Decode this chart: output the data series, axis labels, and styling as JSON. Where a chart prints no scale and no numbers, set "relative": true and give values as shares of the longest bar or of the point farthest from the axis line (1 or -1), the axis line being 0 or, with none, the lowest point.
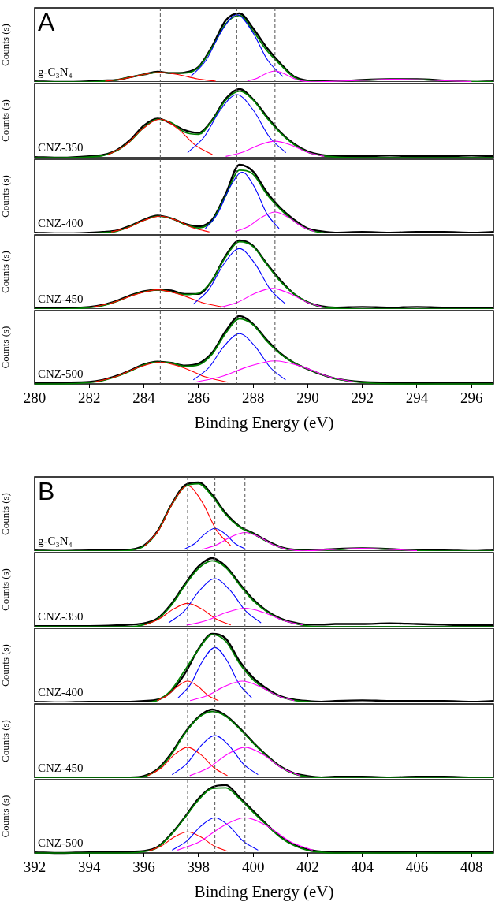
{
  "chart_data": [
    {
      "type": "line",
      "relative": true,
      "title": "A",
      "annotations": [
        "g-C₃N₄"
      ],
      "ylabel": "Counts (s)",
      "xlim": [
        280,
        296.8
      ],
      "xticks": [
        280,
        282,
        284,
        286,
        288,
        290,
        292,
        294,
        296
      ],
      "tick_labels": false,
      "grid": false,
      "legend": false,
      "x": [
        280,
        281,
        282,
        282.5,
        283,
        283.5,
        284,
        284.5,
        285,
        285.5,
        286,
        286.5,
        287,
        287.5,
        288,
        288.5,
        289,
        289.5,
        290,
        290.5,
        291,
        292,
        293,
        294,
        295,
        296,
        296.8
      ],
      "ref_lines": [
        {
          "axis": "x",
          "value": 284.6,
          "color": "#555555",
          "line_style": "dashed"
        },
        {
          "axis": "x",
          "value": 287.4,
          "color": "#555555",
          "line_style": "dashed"
        },
        {
          "axis": "x",
          "value": 288.8,
          "color": "#555555",
          "line_style": "dashed"
        }
      ],
      "series": [
        {
          "color": "#000000",
          "values": [
            0.01,
            0,
            0.01,
            0.02,
            0.03,
            0.07,
            0.11,
            0.15,
            0.13,
            0.14,
            0.22,
            0.52,
            0.9,
            1.0,
            0.78,
            0.5,
            0.27,
            0.08,
            0.02,
            0.01,
            0.01,
            0.03,
            0.04,
            0.04,
            0.02,
            0,
            0.01
          ]
        },
        {
          "color": "#008000",
          "values": [
            0,
            0,
            0,
            0.01,
            0.03,
            0.07,
            0.11,
            0.14,
            0.13,
            0.13,
            0.21,
            0.5,
            0.85,
            0.97,
            0.74,
            0.46,
            0.25,
            0.07,
            0.01,
            0.005,
            0.01,
            0.024,
            0.039,
            0.035,
            0.018,
            0.006,
            0.002
          ]
        },
        {
          "color": "#ff0000",
          "x": [
            282.58,
            283.25,
            283.93,
            284.6,
            285.28,
            285.95,
            286.63
          ],
          "values": [
            0.011,
            0.046,
            0.106,
            0.14,
            0.106,
            0.046,
            0.011
          ]
        },
        {
          "color": "#0000ff",
          "x": [
            285.71,
            286.28,
            286.84,
            287.4,
            287.96,
            288.53,
            289.09
          ],
          "values": [
            0.078,
            0.319,
            0.74,
            0.98,
            0.74,
            0.319,
            0.078
          ]
        },
        {
          "color": "#ff00ff",
          "x": [
            287.79,
            288.13,
            288.46,
            288.8,
            289.14,
            289.48,
            289.81,
            290.15,
            291,
            292,
            293,
            293.3,
            294,
            295,
            296
          ],
          "values": [
            0.013,
            0.052,
            0.121,
            0.16,
            0.121,
            0.052,
            0.013,
            0.002,
            0.01,
            0.024,
            0.039,
            0.04,
            0.035,
            0.018,
            0.006
          ]
        }
      ]
    },
    {
      "type": "line",
      "relative": true,
      "annotations": [
        "CNZ-350"
      ],
      "ylabel": "Counts (s)",
      "xlim": [
        280,
        296.8
      ],
      "xticks": [
        280,
        282,
        284,
        286,
        288,
        290,
        292,
        294,
        296
      ],
      "tick_labels": false,
      "grid": false,
      "legend": false,
      "x": [
        280,
        281,
        282,
        282.5,
        283,
        283.5,
        284,
        284.5,
        285,
        285.5,
        286,
        286.5,
        287,
        287.5,
        288,
        288.5,
        289,
        289.5,
        290,
        290.5,
        291,
        292,
        293,
        294,
        295,
        296,
        296.8
      ],
      "ref_lines": [
        {
          "axis": "x",
          "value": 284.6,
          "color": "#555555",
          "line_style": "dashed"
        },
        {
          "axis": "x",
          "value": 287.4,
          "color": "#555555",
          "line_style": "dashed"
        },
        {
          "axis": "x",
          "value": 288.8,
          "color": "#555555",
          "line_style": "dashed"
        }
      ],
      "series": [
        {
          "color": "#000000",
          "values": [
            0.01,
            0,
            0.02,
            0.04,
            0.11,
            0.26,
            0.47,
            0.57,
            0.5,
            0.4,
            0.36,
            0.55,
            0.86,
            1.0,
            0.85,
            0.6,
            0.37,
            0.2,
            0.09,
            0.04,
            0.02,
            0.02,
            0.03,
            0.02,
            0.02,
            0.03,
            0.02
          ]
        },
        {
          "color": "#008000",
          "values": [
            0,
            0,
            0.01,
            0.03,
            0.1,
            0.24,
            0.44,
            0.56,
            0.51,
            0.37,
            0.34,
            0.54,
            0.84,
            0.97,
            0.84,
            0.58,
            0.36,
            0.19,
            0.08,
            0.03,
            0.01,
            0,
            0,
            0,
            0,
            0,
            0
          ]
        },
        {
          "color": "#ff0000",
          "x": [
            282.69,
            283.33,
            283.96,
            284.6,
            285.24,
            285.88,
            286.51
          ],
          "values": [
            0.045,
            0.182,
            0.423,
            0.56,
            0.423,
            0.182,
            0.045
          ]
        },
        {
          "color": "#0000ff",
          "x": [
            285.6,
            286.2,
            286.8,
            287.4,
            288,
            288.6,
            289.2
          ],
          "values": [
            0.074,
            0.299,
            0.695,
            0.92,
            0.695,
            0.299,
            0.074
          ]
        },
        {
          "color": "#ff00ff",
          "x": [
            287,
            287.6,
            288.2,
            288.8,
            289.4,
            290,
            290.6
          ],
          "values": [
            0.019,
            0.078,
            0.181,
            0.24,
            0.181,
            0.078,
            0.019
          ]
        }
      ]
    },
    {
      "type": "line",
      "relative": true,
      "annotations": [
        "CNZ-400"
      ],
      "ylabel": "Counts (s)",
      "xlim": [
        280,
        296.8
      ],
      "xticks": [
        280,
        282,
        284,
        286,
        288,
        290,
        292,
        294,
        296
      ],
      "tick_labels": false,
      "grid": false,
      "legend": false,
      "x": [
        280,
        281,
        282,
        282.5,
        283,
        283.5,
        284,
        284.5,
        285,
        285.5,
        286,
        286.5,
        287,
        287.5,
        288,
        288.5,
        289,
        289.5,
        290,
        290.5,
        291,
        292,
        293,
        294,
        295,
        296,
        296.8
      ],
      "ref_lines": [
        {
          "axis": "x",
          "value": 284.6,
          "color": "#555555",
          "line_style": "dashed"
        },
        {
          "axis": "x",
          "value": 287.4,
          "color": "#555555",
          "line_style": "dashed"
        },
        {
          "axis": "x",
          "value": 288.8,
          "color": "#555555",
          "line_style": "dashed"
        }
      ],
      "series": [
        {
          "color": "#000000",
          "values": [
            0.01,
            0,
            0.01,
            0.02,
            0.04,
            0.11,
            0.2,
            0.26,
            0.22,
            0.14,
            0.1,
            0.2,
            0.58,
            1.0,
            0.9,
            0.6,
            0.37,
            0.2,
            0.07,
            0.03,
            0.01,
            0.02,
            0.01,
            0.02,
            0.02,
            0.01,
            0.02
          ]
        },
        {
          "color": "#008000",
          "values": [
            0,
            0,
            0,
            0.01,
            0.03,
            0.1,
            0.19,
            0.25,
            0.22,
            0.13,
            0.08,
            0.18,
            0.55,
            0.92,
            0.86,
            0.57,
            0.35,
            0.18,
            0.06,
            0.01,
            0,
            0,
            0,
            0,
            0,
            0,
            0
          ]
        },
        {
          "color": "#ff0000",
          "x": [
            282.8,
            283.4,
            284,
            284.6,
            285.2,
            285.8,
            286.4
          ],
          "values": [
            0.02,
            0.081,
            0.189,
            0.25,
            0.189,
            0.081,
            0.02
          ]
        },
        {
          "color": "#0000ff",
          "x": [
            286.25,
            286.7,
            287.15,
            287.6,
            288.05,
            288.5,
            288.95
          ],
          "values": [
            0.071,
            0.289,
            0.672,
            0.89,
            0.672,
            0.289,
            0.071
          ]
        },
        {
          "color": "#ff00ff",
          "x": [
            287.34,
            287.83,
            288.31,
            288.8,
            289.29,
            289.78,
            290.26
          ],
          "values": [
            0.025,
            0.101,
            0.234,
            0.31,
            0.234,
            0.101,
            0.025
          ]
        }
      ]
    },
    {
      "type": "line",
      "relative": true,
      "annotations": [
        "CNZ-450"
      ],
      "ylabel": "Counts (s)",
      "xlim": [
        280,
        296.8
      ],
      "xticks": [
        280,
        282,
        284,
        286,
        288,
        290,
        292,
        294,
        296
      ],
      "tick_labels": false,
      "grid": false,
      "legend": false,
      "x": [
        280,
        281,
        282,
        282.5,
        283,
        283.5,
        284,
        284.5,
        285,
        285.5,
        286,
        286.5,
        287,
        287.5,
        288,
        288.5,
        289,
        289.5,
        290,
        290.5,
        291,
        292,
        293,
        294,
        295,
        296,
        296.8
      ],
      "ref_lines": [
        {
          "axis": "x",
          "value": 284.6,
          "color": "#555555",
          "line_style": "dashed"
        },
        {
          "axis": "x",
          "value": 287.4,
          "color": "#555555",
          "line_style": "dashed"
        },
        {
          "axis": "x",
          "value": 288.8,
          "color": "#555555",
          "line_style": "dashed"
        }
      ],
      "series": [
        {
          "color": "#000000",
          "values": [
            0.01,
            0.01,
            0.03,
            0.06,
            0.12,
            0.2,
            0.26,
            0.28,
            0.27,
            0.22,
            0.22,
            0.42,
            0.78,
            1.0,
            0.92,
            0.66,
            0.42,
            0.22,
            0.1,
            0.04,
            0.02,
            0.03,
            0.02,
            0.03,
            0.02,
            0.02,
            0.02
          ]
        },
        {
          "color": "#008000",
          "values": [
            0,
            0,
            0.02,
            0.05,
            0.11,
            0.19,
            0.25,
            0.28,
            0.25,
            0.21,
            0.23,
            0.42,
            0.76,
            0.98,
            0.91,
            0.65,
            0.4,
            0.22,
            0.1,
            0.03,
            0.01,
            0,
            0,
            0,
            0,
            0,
            0
          ]
        },
        {
          "color": "#ff0000",
          "x": [
            282.03,
            282.85,
            283.68,
            284.5,
            285.33,
            286.15,
            286.98
          ],
          "values": [
            0.022,
            0.091,
            0.211,
            0.28,
            0.211,
            0.091,
            0.022
          ]
        },
        {
          "color": "#0000ff",
          "x": [
            285.81,
            286.38,
            286.94,
            287.5,
            288.06,
            288.63,
            289.19
          ],
          "values": [
            0.07,
            0.286,
            0.664,
            0.88,
            0.664,
            0.286,
            0.07
          ]
        },
        {
          "color": "#ff00ff",
          "x": [
            286.79,
            287.43,
            288.06,
            288.7,
            289.34,
            289.98,
            290.61
          ],
          "values": [
            0.024,
            0.098,
            0.227,
            0.3,
            0.227,
            0.098,
            0.024
          ]
        }
      ]
    },
    {
      "type": "line",
      "relative": true,
      "annotations": [
        "CNZ-500"
      ],
      "ylabel": "Counts (s)",
      "xlabel": "Binding Energy (eV)",
      "xlim": [
        280,
        296.8
      ],
      "xticks": [
        280,
        282,
        284,
        286,
        288,
        290,
        292,
        294,
        296
      ],
      "tick_labels": "x",
      "grid": false,
      "legend": false,
      "x": [
        280,
        281,
        282,
        282.5,
        283,
        283.5,
        284,
        284.5,
        285,
        285.5,
        286,
        286.5,
        287,
        287.5,
        288,
        288.5,
        289,
        289.5,
        290,
        290.5,
        291,
        292,
        293,
        294,
        295,
        296,
        296.8
      ],
      "ref_lines": [
        {
          "axis": "x",
          "value": 284.6,
          "color": "#555555",
          "line_style": "dashed"
        },
        {
          "axis": "x",
          "value": 287.4,
          "color": "#555555",
          "line_style": "dashed"
        },
        {
          "axis": "x",
          "value": 288.8,
          "color": "#555555",
          "line_style": "dashed"
        }
      ],
      "series": [
        {
          "color": "#000000",
          "values": [
            0.01,
            0.02,
            0.03,
            0.06,
            0.12,
            0.2,
            0.29,
            0.33,
            0.31,
            0.27,
            0.3,
            0.46,
            0.78,
            1.0,
            0.88,
            0.65,
            0.45,
            0.31,
            0.22,
            0.14,
            0.08,
            0.03,
            0.02,
            0.01,
            0.02,
            0.02,
            0.02
          ]
        },
        {
          "color": "#008000",
          "values": [
            0,
            0,
            0.02,
            0.05,
            0.11,
            0.19,
            0.28,
            0.32,
            0.31,
            0.26,
            0.28,
            0.44,
            0.75,
            0.96,
            0.87,
            0.63,
            0.44,
            0.31,
            0.22,
            0.14,
            0.08,
            0.02,
            0,
            0,
            0,
            0,
            0
          ]
        },
        {
          "color": "#ff0000",
          "x": [
            282.13,
            282.95,
            283.78,
            284.6,
            285.43,
            286.25,
            287.08
          ],
          "values": [
            0.026,
            0.104,
            0.242,
            0.32,
            0.242,
            0.104,
            0.026
          ]
        },
        {
          "color": "#0000ff",
          "x": [
            285.81,
            286.38,
            286.94,
            287.5,
            288.06,
            288.63,
            289.19
          ],
          "values": [
            0.059,
            0.241,
            0.559,
            0.74,
            0.559,
            0.241,
            0.059
          ]
        },
        {
          "color": "#ff00ff",
          "x": [
            285.88,
            286.85,
            287.83,
            288.8,
            289.78,
            290.75,
            291.73
          ],
          "values": [
            0.027,
            0.111,
            0.257,
            0.34,
            0.257,
            0.111,
            0.027
          ]
        }
      ]
    },
    {
      "type": "line",
      "relative": true,
      "title": "B",
      "annotations": [
        "g-C₃N₄"
      ],
      "ylabel": "Counts (s)",
      "xlim": [
        392,
        408.8
      ],
      "xticks": [
        392,
        394,
        396,
        398,
        400,
        402,
        404,
        406,
        408
      ],
      "tick_labels": false,
      "grid": false,
      "legend": false,
      "x": [
        392,
        393,
        394,
        395,
        395.5,
        396,
        396.5,
        397,
        397.5,
        398,
        398.5,
        399,
        399.5,
        400,
        400.5,
        401,
        401.5,
        402,
        402.5,
        403,
        404,
        405,
        406,
        407,
        408,
        408.8
      ],
      "ref_lines": [
        {
          "axis": "x",
          "value": 397.6,
          "color": "#555555",
          "line_style": "dashed"
        },
        {
          "axis": "x",
          "value": 398.6,
          "color": "#555555",
          "line_style": "dashed"
        },
        {
          "axis": "x",
          "value": 399.7,
          "color": "#555555",
          "line_style": "dashed"
        }
      ],
      "series": [
        {
          "color": "#000000",
          "values": [
            0.01,
            0,
            0.01,
            0.01,
            0.02,
            0.08,
            0.29,
            0.67,
            0.96,
            1.0,
            0.82,
            0.55,
            0.36,
            0.26,
            0.15,
            0.06,
            0.02,
            0.01,
            0.02,
            0.03,
            0.04,
            0.03,
            0.01,
            0.01,
            0,
            0.01
          ]
        },
        {
          "color": "#008000",
          "values": [
            0,
            0,
            0,
            0,
            0.01,
            0.07,
            0.28,
            0.66,
            0.94,
            0.98,
            0.8,
            0.53,
            0.35,
            0.25,
            0.14,
            0.05,
            0.01,
            0.005,
            0.01,
            0.02,
            0.04,
            0.024,
            0.005,
            0,
            0,
            0
          ]
        },
        {
          "color": "#ff0000",
          "x": [
            396.03,
            396.55,
            397.08,
            397.6,
            398.13,
            398.65,
            399.18
          ],
          "values": [
            0.076,
            0.309,
            0.717,
            0.95,
            0.717,
            0.309,
            0.076
          ]
        },
        {
          "color": "#0000ff",
          "x": [
            397.48,
            397.85,
            398.23,
            398.6,
            398.98,
            399.35,
            399.73
          ],
          "values": [
            0.026,
            0.107,
            0.249,
            0.33,
            0.249,
            0.107,
            0.026
          ]
        },
        {
          "color": "#ff00ff",
          "x": [
            398.13,
            398.65,
            399.18,
            399.7,
            400.23,
            400.75,
            401.28,
            401.8,
            402.5,
            403,
            403.5,
            404,
            404.5,
            405,
            406
          ],
          "values": [
            0.022,
            0.088,
            0.204,
            0.27,
            0.204,
            0.088,
            0.022,
            0.003,
            0.013,
            0.024,
            0.035,
            0.04,
            0.035,
            0.024,
            0.005
          ]
        }
      ]
    },
    {
      "type": "line",
      "relative": true,
      "annotations": [
        "CNZ-350"
      ],
      "ylabel": "Counts (s)",
      "xlim": [
        392,
        408.8
      ],
      "xticks": [
        392,
        394,
        396,
        398,
        400,
        402,
        404,
        406,
        408
      ],
      "tick_labels": false,
      "grid": false,
      "legend": false,
      "x": [
        392,
        393,
        394,
        395,
        395.5,
        396,
        396.5,
        397,
        397.5,
        398,
        398.5,
        399,
        399.5,
        400,
        400.5,
        401,
        401.5,
        402,
        402.5,
        403,
        404,
        405,
        406,
        407,
        408,
        408.8
      ],
      "ref_lines": [
        {
          "axis": "x",
          "value": 397.6,
          "color": "#555555",
          "line_style": "dashed"
        },
        {
          "axis": "x",
          "value": 398.6,
          "color": "#555555",
          "line_style": "dashed"
        },
        {
          "axis": "x",
          "value": 399.7,
          "color": "#555555",
          "line_style": "dashed"
        }
      ],
      "series": [
        {
          "color": "#000000",
          "values": [
            0.01,
            0.01,
            0.01,
            0.02,
            0.03,
            0.05,
            0.12,
            0.33,
            0.62,
            0.88,
            1.0,
            0.88,
            0.63,
            0.4,
            0.23,
            0.12,
            0.06,
            0.03,
            0.03,
            0.04,
            0.04,
            0.05,
            0.04,
            0.03,
            0.02,
            0.02
          ]
        },
        {
          "color": "#008000",
          "values": [
            0,
            0,
            0,
            0,
            0,
            0.03,
            0.11,
            0.31,
            0.6,
            0.85,
            0.96,
            0.86,
            0.61,
            0.38,
            0.22,
            0.11,
            0.05,
            0.01,
            0,
            0,
            0,
            0,
            0,
            0,
            0,
            0
          ]
        },
        {
          "color": "#ff0000",
          "x": [
            396.03,
            396.55,
            397.08,
            397.6,
            398.13,
            398.65,
            399.18
          ],
          "values": [
            0.027,
            0.111,
            0.257,
            0.34,
            0.257,
            0.111,
            0.027
          ]
        },
        {
          "color": "#0000ff",
          "x": [
            396.91,
            397.48,
            398.04,
            398.6,
            399.16,
            399.73,
            400.29
          ],
          "values": [
            0.056,
            0.228,
            0.529,
            0.7,
            0.529,
            0.228,
            0.056
          ]
        },
        {
          "color": "#ff00ff",
          "x": [
            397.56,
            398.28,
            398.99,
            399.7,
            400.41,
            401.13,
            401.84
          ],
          "values": [
            0.022,
            0.088,
            0.204,
            0.27,
            0.204,
            0.088,
            0.022
          ]
        }
      ]
    },
    {
      "type": "line",
      "relative": true,
      "annotations": [
        "CNZ-400"
      ],
      "ylabel": "Counts (s)",
      "xlim": [
        392,
        408.8
      ],
      "xticks": [
        392,
        394,
        396,
        398,
        400,
        402,
        404,
        406,
        408
      ],
      "tick_labels": false,
      "grid": false,
      "legend": false,
      "x": [
        392,
        393,
        394,
        395,
        395.5,
        396,
        396.5,
        397,
        397.5,
        398,
        398.5,
        399,
        399.5,
        400,
        400.5,
        401,
        401.5,
        402,
        402.5,
        403,
        404,
        405,
        406,
        407,
        408,
        408.8
      ],
      "ref_lines": [
        {
          "axis": "x",
          "value": 397.6,
          "color": "#555555",
          "line_style": "dashed"
        },
        {
          "axis": "x",
          "value": 398.6,
          "color": "#555555",
          "line_style": "dashed"
        },
        {
          "axis": "x",
          "value": 399.7,
          "color": "#555555",
          "line_style": "dashed"
        }
      ],
      "series": [
        {
          "color": "#000000",
          "values": [
            0.01,
            0,
            0.01,
            0.01,
            0.01,
            0.02,
            0.04,
            0.16,
            0.42,
            0.78,
            1.0,
            0.93,
            0.6,
            0.36,
            0.2,
            0.09,
            0.04,
            0.02,
            0.01,
            0.02,
            0.03,
            0.02,
            0.02,
            0.02,
            0.01,
            0.02
          ]
        },
        {
          "color": "#008000",
          "values": [
            0,
            0,
            0,
            0,
            0,
            0,
            0.03,
            0.18,
            0.47,
            0.77,
            0.99,
            0.89,
            0.57,
            0.33,
            0.18,
            0.08,
            0.03,
            0.01,
            0,
            0,
            0,
            0,
            0,
            0,
            0,
            0
          ]
        },
        {
          "color": "#ff0000",
          "x": [
            396.48,
            396.85,
            397.23,
            397.6,
            397.98,
            398.35,
            398.73
          ],
          "values": [
            0.025,
            0.101,
            0.234,
            0.31,
            0.234,
            0.101,
            0.025
          ]
        },
        {
          "color": "#0000ff",
          "x": [
            397.25,
            397.7,
            398.15,
            398.6,
            399.05,
            399.5,
            399.95
          ],
          "values": [
            0.064,
            0.26,
            0.604,
            0.8,
            0.604,
            0.26,
            0.064
          ]
        },
        {
          "color": "#ff00ff",
          "x": [
            397.69,
            398.33,
            398.96,
            399.6,
            400.24,
            400.88,
            401.51
          ],
          "values": [
            0.025,
            0.101,
            0.234,
            0.31,
            0.234,
            0.101,
            0.025
          ]
        }
      ]
    },
    {
      "type": "line",
      "relative": true,
      "annotations": [
        "CNZ-450"
      ],
      "ylabel": "Counts (s)",
      "xlim": [
        392,
        408.8
      ],
      "xticks": [
        392,
        394,
        396,
        398,
        400,
        402,
        404,
        406,
        408
      ],
      "tick_labels": false,
      "grid": false,
      "legend": false,
      "x": [
        392,
        393,
        394,
        395,
        395.5,
        396,
        396.5,
        397,
        397.5,
        398,
        398.5,
        399,
        399.5,
        400,
        400.5,
        401,
        401.5,
        402,
        402.5,
        403,
        404,
        405,
        406,
        407,
        408,
        408.8
      ],
      "ref_lines": [
        {
          "axis": "x",
          "value": 397.6,
          "color": "#555555",
          "line_style": "dashed"
        },
        {
          "axis": "x",
          "value": 398.6,
          "color": "#555555",
          "line_style": "dashed"
        },
        {
          "axis": "x",
          "value": 399.7,
          "color": "#555555",
          "line_style": "dashed"
        }
      ],
      "series": [
        {
          "color": "#000000",
          "values": [
            0.01,
            0.01,
            0.01,
            0.01,
            0.01,
            0.03,
            0.13,
            0.36,
            0.66,
            0.89,
            1.0,
            0.91,
            0.73,
            0.52,
            0.33,
            0.17,
            0.07,
            0.03,
            0.01,
            0.02,
            0.02,
            0.01,
            0.02,
            0.02,
            0.01,
            0.01
          ]
        },
        {
          "color": "#008000",
          "values": [
            0,
            0,
            0,
            0,
            0,
            0.02,
            0.12,
            0.34,
            0.65,
            0.88,
            0.97,
            0.9,
            0.72,
            0.51,
            0.32,
            0.16,
            0.06,
            0.02,
            0,
            0,
            0,
            0,
            0,
            0,
            0,
            0
          ]
        },
        {
          "color": "#ff0000",
          "x": [
            396.14,
            396.63,
            397.11,
            397.6,
            398.09,
            398.58,
            399.06
          ],
          "values": [
            0.036,
            0.146,
            0.34,
            0.45,
            0.34,
            0.146,
            0.036
          ]
        },
        {
          "color": "#0000ff",
          "x": [
            397.03,
            397.55,
            398.08,
            398.6,
            399.13,
            399.65,
            400.18
          ],
          "values": [
            0.05,
            0.202,
            0.468,
            0.62,
            0.468,
            0.202,
            0.05
          ]
        },
        {
          "color": "#ff00ff",
          "x": [
            397.68,
            398.35,
            399.03,
            399.7,
            400.38,
            401.05,
            401.73
          ],
          "values": [
            0.036,
            0.146,
            0.34,
            0.45,
            0.34,
            0.146,
            0.036
          ]
        }
      ]
    },
    {
      "type": "line",
      "relative": true,
      "annotations": [
        "CNZ-500"
      ],
      "ylabel": "Counts (s)",
      "xlabel": "Binding Energy (eV)",
      "xlim": [
        392,
        408.8
      ],
      "xticks": [
        392,
        394,
        396,
        398,
        400,
        402,
        404,
        406,
        408
      ],
      "tick_labels": "x",
      "grid": false,
      "legend": false,
      "x": [
        392,
        393,
        394,
        395,
        395.5,
        396,
        396.5,
        397,
        397.5,
        398,
        398.5,
        399,
        399.5,
        400,
        400.5,
        401,
        401.5,
        402,
        402.5,
        403,
        404,
        405,
        406,
        407,
        408,
        408.8
      ],
      "ref_lines": [
        {
          "axis": "x",
          "value": 397.6,
          "color": "#555555",
          "line_style": "dashed"
        },
        {
          "axis": "x",
          "value": 398.6,
          "color": "#555555",
          "line_style": "dashed"
        },
        {
          "axis": "x",
          "value": 399.7,
          "color": "#555555",
          "line_style": "dashed"
        }
      ],
      "series": [
        {
          "color": "#000000",
          "values": [
            0.01,
            0,
            0.01,
            0.01,
            0.02,
            0.03,
            0.09,
            0.28,
            0.53,
            0.8,
            0.97,
            1.0,
            0.82,
            0.62,
            0.42,
            0.24,
            0.12,
            0.05,
            0.02,
            0.01,
            0.02,
            0.01,
            0.02,
            0.01,
            0.01,
            0.01
          ]
        },
        {
          "color": "#008000",
          "values": [
            0,
            0,
            0,
            0,
            0,
            0.02,
            0.08,
            0.27,
            0.52,
            0.78,
            0.95,
            0.96,
            0.8,
            0.6,
            0.41,
            0.23,
            0.11,
            0.04,
            0.01,
            0,
            0,
            0,
            0,
            0,
            0,
            0
          ]
        },
        {
          "color": "#ff0000",
          "x": [
            396.14,
            396.63,
            397.11,
            397.6,
            398.09,
            398.58,
            399.06
          ],
          "values": [
            0.025,
            0.101,
            0.234,
            0.31,
            0.234,
            0.101,
            0.025
          ]
        },
        {
          "color": "#0000ff",
          "x": [
            397.03,
            397.55,
            398.08,
            398.6,
            399.13,
            399.65,
            400.18
          ],
          "values": [
            0.042,
            0.169,
            0.393,
            0.52,
            0.393,
            0.169,
            0.042
          ]
        },
        {
          "color": "#ff00ff",
          "x": [
            397.23,
            398.05,
            398.88,
            399.7,
            400.53,
            401.35,
            402.18
          ],
          "values": [
            0.042,
            0.169,
            0.393,
            0.52,
            0.393,
            0.169,
            0.042
          ]
        }
      ]
    }
  ]
}
